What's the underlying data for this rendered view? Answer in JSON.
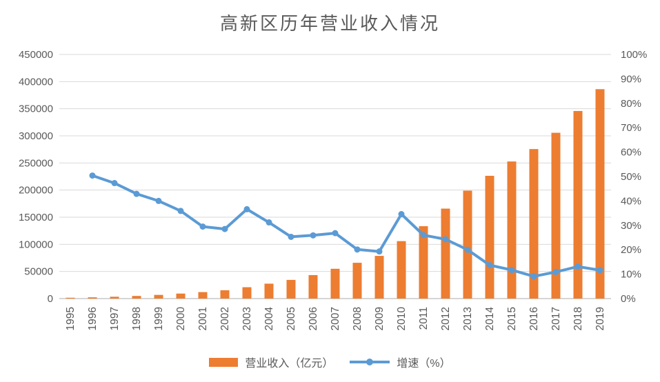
{
  "title": "高新区历年营业收入情况",
  "legend": [
    {
      "label": "营业收入（亿元）",
      "type": "bar"
    },
    {
      "label": "增速（%）",
      "type": "line"
    }
  ],
  "colors": {
    "bar": "#ED7D31",
    "line": "#5B9BD5",
    "grid": "#D9D9D9",
    "axis_line": "#D5D5D5",
    "text": "#595959",
    "background": "#FFFFFF"
  },
  "chart_data": {
    "type": "bar",
    "combo": "bar+line dual axis",
    "title": "高新区历年营业收入情况",
    "categories": [
      "1995",
      "1996",
      "1997",
      "1998",
      "1999",
      "2000",
      "2001",
      "2002",
      "2003",
      "2004",
      "2005",
      "2006",
      "2007",
      "2008",
      "2009",
      "2010",
      "2011",
      "2012",
      "2013",
      "2014",
      "2015",
      "2016",
      "2017",
      "2018",
      "2019"
    ],
    "series": [
      {
        "name": "营业收入（亿元）",
        "type": "bar",
        "axis": "left",
        "values": [
          1529,
          2300,
          3388,
          4840,
          6775,
          9209,
          11928,
          15326,
          20939,
          27466,
          34416,
          43320,
          54925,
          65986,
          78707,
          105917,
          133434,
          165824,
          198975,
          226304,
          252749,
          275637,
          305653,
          345817,
          386038
        ]
      },
      {
        "name": "增速（%）",
        "type": "line",
        "axis": "right",
        "values": [
          null,
          50.4,
          47.3,
          42.9,
          40.0,
          35.9,
          29.5,
          28.5,
          36.6,
          31.2,
          25.3,
          25.9,
          26.8,
          20.1,
          19.3,
          34.6,
          26.0,
          24.3,
          20.0,
          13.7,
          11.7,
          9.1,
          10.9,
          13.1,
          11.6
        ]
      }
    ],
    "left_axis": {
      "min": 0,
      "max": 450000,
      "step": 50000,
      "tick_labels": [
        "0",
        "50000",
        "100000",
        "150000",
        "200000",
        "250000",
        "300000",
        "350000",
        "400000",
        "450000"
      ]
    },
    "right_axis": {
      "min": 0,
      "max": 100,
      "step": 10,
      "tick_labels": [
        "0%",
        "10%",
        "20%",
        "30%",
        "40%",
        "50%",
        "60%",
        "70%",
        "80%",
        "90%",
        "100%"
      ]
    },
    "grid": true,
    "legend_position": "bottom",
    "x_tick_rotation": 90
  }
}
